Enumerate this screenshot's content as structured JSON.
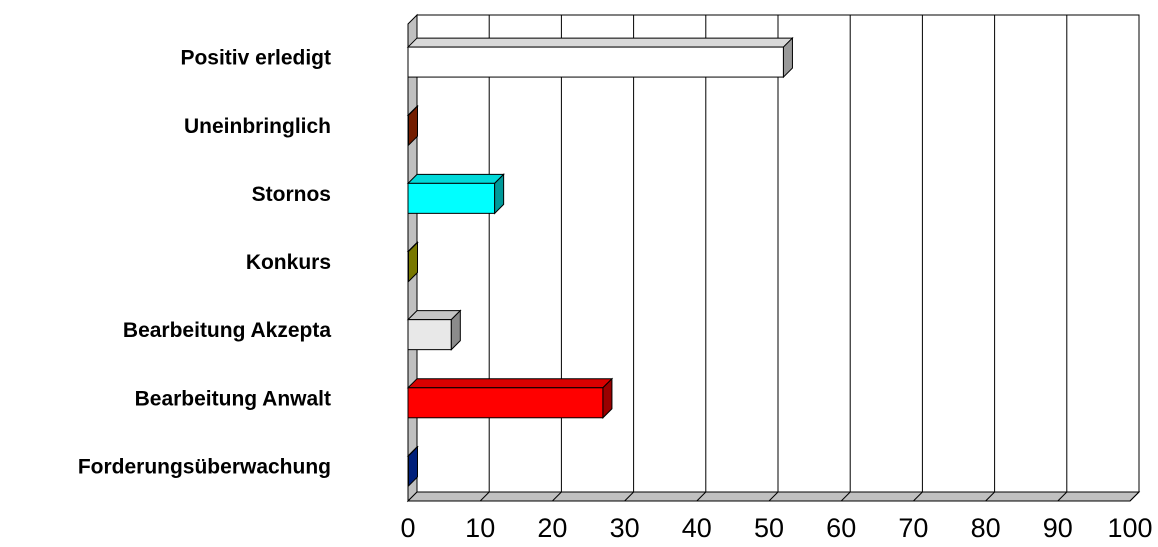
{
  "chart_data": {
    "type": "bar",
    "orientation": "horizontal",
    "style": "3d",
    "title": "",
    "xlabel": "",
    "ylabel": "",
    "xlim": [
      0,
      100
    ],
    "x_ticks": [
      0,
      10,
      20,
      30,
      40,
      50,
      60,
      70,
      80,
      90,
      100
    ],
    "grid": true,
    "legend": "none",
    "categories": [
      "Positiv erledigt",
      "Uneinbringlich",
      "Stornos",
      "Konkurs",
      "Bearbeitung Akzepta",
      "Bearbeitung Anwalt",
      "Forderungsüberwachung"
    ],
    "values": [
      52,
      0,
      12,
      0,
      6,
      27,
      0
    ],
    "colors": [
      "#ffffff",
      "#c03000",
      "#00ffff",
      "#c8c800",
      "#e8e8e8",
      "#ff0000",
      "#0033cc"
    ]
  }
}
